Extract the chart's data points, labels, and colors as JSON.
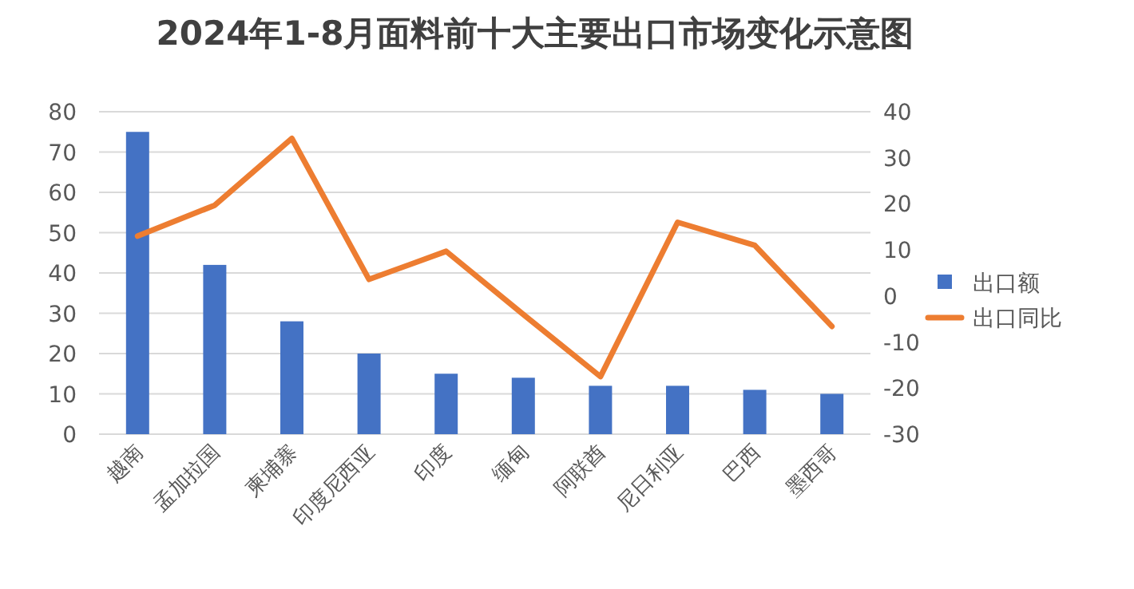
{
  "chart_data": {
    "type": "bar",
    "title": "2024年1-8月面料前十大主要出口市场变化示意图",
    "categories": [
      "越南",
      "孟加拉国",
      "柬埔寨",
      "印度尼西亚",
      "印度",
      "缅甸",
      "阿联酋",
      "尼日利亚",
      "巴西",
      "墨西哥"
    ],
    "series": [
      {
        "name": "出口额",
        "color": "#4472c4",
        "values": [
          75,
          42,
          28,
          20,
          15,
          14,
          12,
          12,
          11,
          10
        ]
      },
      {
        "name": "出口同比",
        "type": "line",
        "axis": "y2",
        "color": "#ed7d31",
        "values": [
          13,
          19.7,
          34.2,
          3.6,
          9.7,
          -4,
          -17.5,
          16,
          11,
          -6.6
        ]
      }
    ],
    "ylim": [
      0,
      80
    ],
    "yticks": [
      0,
      10,
      20,
      30,
      40,
      50,
      60,
      70,
      80
    ],
    "y2lim": [
      -30,
      40
    ],
    "y2ticks": [
      -30,
      -20,
      -10,
      0,
      10,
      20,
      30,
      40
    ],
    "grid": "y",
    "legend": "right"
  }
}
